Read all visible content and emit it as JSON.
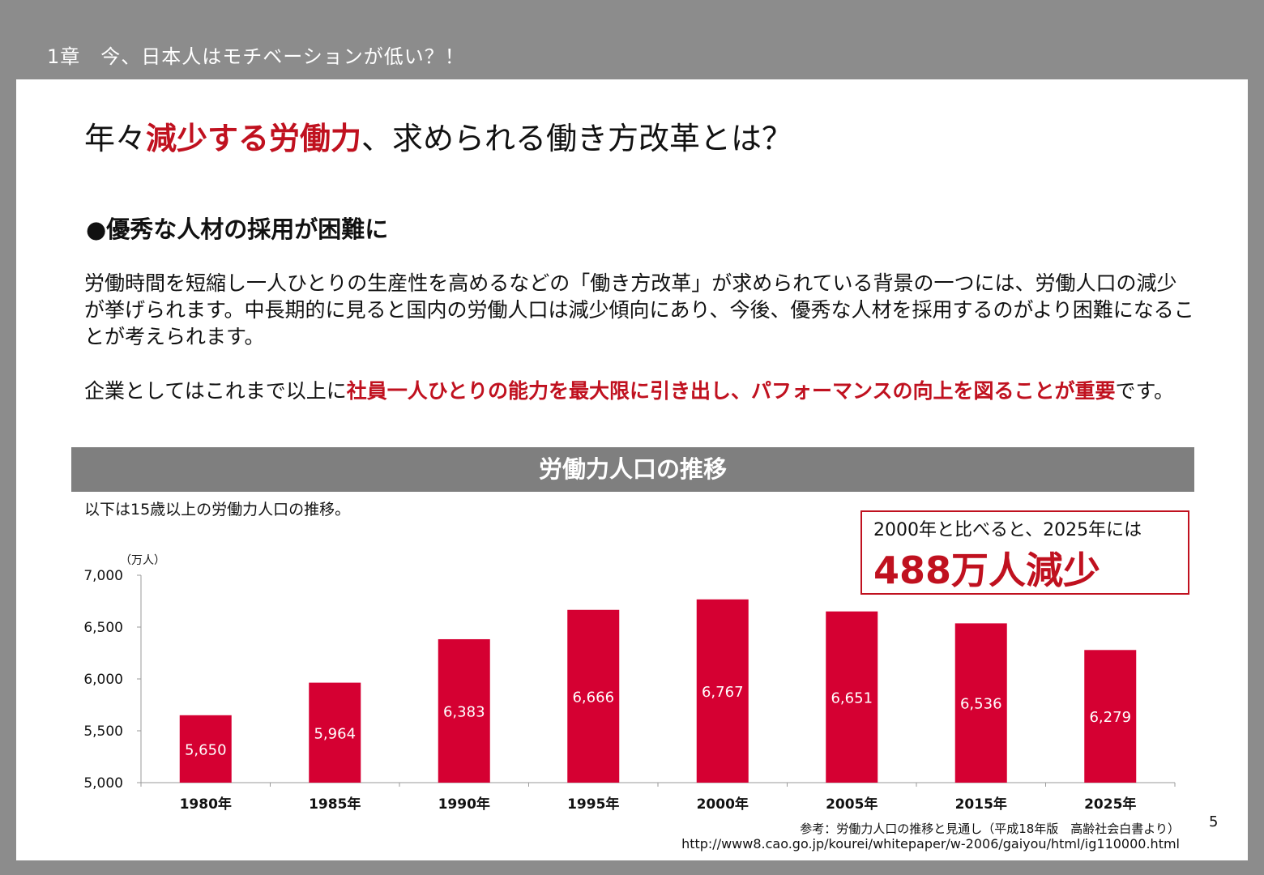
{
  "header": {
    "chapter": "1章　今、日本人はモチベーションが低い？！"
  },
  "title": {
    "prefix": "年々",
    "highlight": "減少する労働力",
    "suffix": "、求められる働き方改革とは？"
  },
  "section": {
    "heading": "●優秀な人材の採用が困難に"
  },
  "body": {
    "paragraph1": "労働時間を短縮し一人ひとりの生産性を高めるなどの「働き方改革」が求められている背景の一つには、労働人口の減少が挙げられます。中長期的に見ると国内の労働人口は減少傾向にあり、今後、優秀な人材を採用するのがより困難になることが考えられます。",
    "paragraph2_prefix": "企業としてはこれまで以上に",
    "paragraph2_highlight": "社員一人ひとりの能力を最大限に引き出し、パフォーマンスの向上を図ることが重要",
    "paragraph2_suffix": "です。"
  },
  "chart_section": {
    "band_title": "労働力人口の推移",
    "note": "以下は15歳以上の労働力人口の推移。"
  },
  "callout": {
    "line1": "2000年と比べると、2025年には",
    "line2": "488万人減少"
  },
  "chart_data": {
    "type": "bar",
    "categories": [
      "1980年",
      "1985年",
      "1990年",
      "1995年",
      "2000年",
      "2005年",
      "2015年",
      "2025年"
    ],
    "values": [
      5650,
      5964,
      6383,
      6666,
      6767,
      6651,
      6536,
      6279
    ],
    "value_labels": [
      "5,650",
      "5,964",
      "6,383",
      "6,666",
      "6,767",
      "6,651",
      "6,536",
      "6,279"
    ],
    "unit": "（万人）",
    "ylim": [
      5000,
      7000
    ],
    "yticks": [
      5000,
      5500,
      6000,
      6500,
      7000
    ],
    "ytick_labels": [
      "5,000",
      "5,500",
      "6,000",
      "6,500",
      "7,000"
    ],
    "grid": false,
    "bar_color": "#d50032",
    "label_color": "#ffffff"
  },
  "source": {
    "line1": "参考：労働力人口の推移と見通し（平成18年版　高齢社会白書より）",
    "line2": "http://www8.cao.go.jp/kourei/whitepaper/w-2006/gaiyou/html/ig110000.html"
  },
  "page_number": "5"
}
